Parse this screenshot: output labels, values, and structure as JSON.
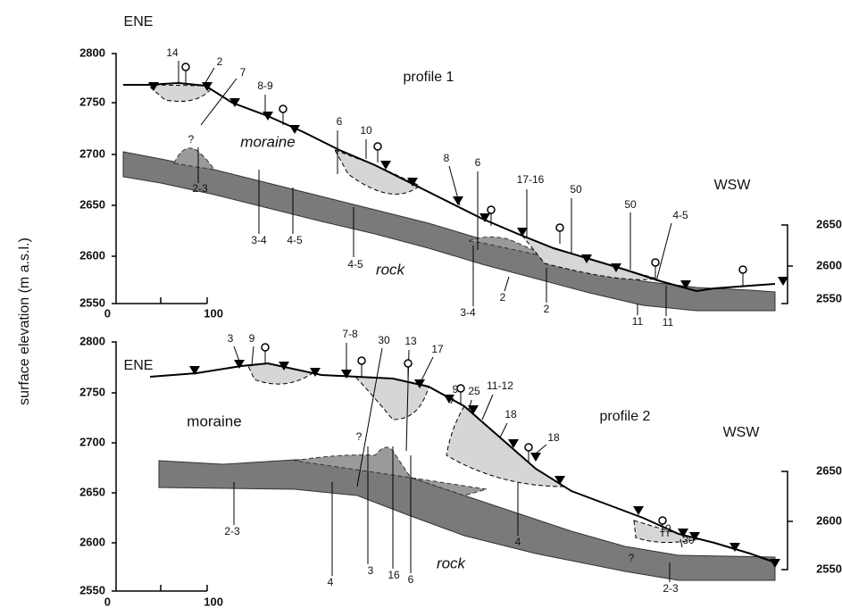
{
  "y_axis_label": "surface elevation (m a.s.l.)",
  "profile1": {
    "title": "profile 1",
    "direction_left": "ENE",
    "direction_right": "WSW",
    "left_ticks": [
      2800,
      2750,
      2700,
      2650,
      2600,
      2550
    ],
    "right_ticks": [
      2650,
      2600,
      2550
    ],
    "scale": [
      0,
      100
    ],
    "units": [
      "moraine",
      "rock"
    ],
    "labels": [
      "14",
      "2",
      "7",
      "8-9",
      "6",
      "10",
      "8",
      "6",
      "17-16",
      "50",
      "50",
      "4-5",
      "?",
      "2-3",
      "3-4",
      "4-5",
      "4-5",
      "3-4",
      "2",
      "2",
      "11",
      "11"
    ]
  },
  "profile2": {
    "title": "profile 2",
    "direction_left": "ENE",
    "direction_right": "WSW",
    "left_ticks": [
      2800,
      2750,
      2700,
      2650,
      2600,
      2550
    ],
    "right_ticks": [
      2650,
      2600,
      2550
    ],
    "scale": [
      0,
      100
    ],
    "units": [
      "moraine",
      "rock"
    ],
    "labels": [
      "3",
      "9",
      "7-8",
      "30",
      "13",
      "17",
      "9",
      "25",
      "11-12",
      "18",
      "18",
      "?",
      "2-3",
      "4",
      "3",
      "16",
      "6",
      "4",
      "19",
      "30",
      "?",
      "2-3"
    ]
  }
}
